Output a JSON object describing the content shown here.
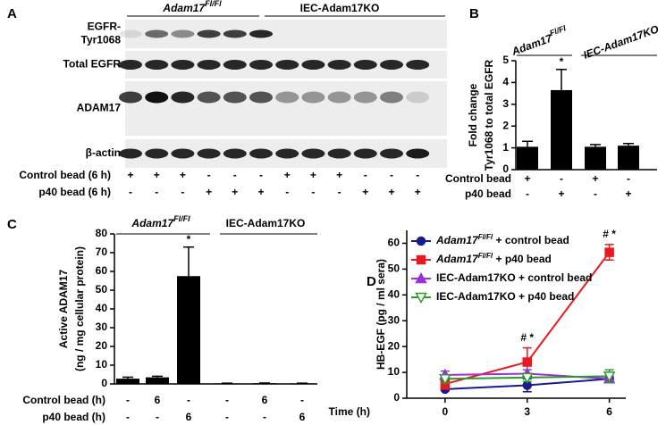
{
  "blot": {
    "panel": "A",
    "groups": [
      {
        "name": "Adam17",
        "sup": "Fl/Fl"
      },
      {
        "name": "IEC-Adam17KO"
      }
    ],
    "rows": [
      [
        "EGFR-",
        "Tyr1068"
      ],
      [
        "Total EGFR"
      ],
      [
        "ADAM17"
      ],
      [
        "β-actin"
      ]
    ],
    "conditions": [
      {
        "label": "Control bead (6 h)",
        "marks": [
          "+",
          "+",
          "+",
          "-",
          "-",
          "-",
          "+",
          "+",
          "+",
          "-",
          "-",
          "-"
        ]
      },
      {
        "label": "p40 bead (6 h)",
        "marks": [
          "-",
          "-",
          "-",
          "+",
          "+",
          "+",
          "-",
          "-",
          "-",
          "+",
          "+",
          "+"
        ]
      }
    ]
  },
  "chart_data": [
    {
      "type": "bar",
      "panel": "B",
      "group_italic": true,
      "groups": [
        {
          "name": "Adam17",
          "sup": "Fl/Fl"
        },
        {
          "name": "IEC-Adam17KO"
        }
      ],
      "ylabel": [
        "Fold change",
        "Tyr1068 to total EGFR"
      ],
      "values": [
        1.05,
        3.65,
        1.05,
        1.1
      ],
      "errors": [
        0.25,
        0.95,
        0.1,
        0.1
      ],
      "color": "#000000",
      "ylim": [
        0,
        5
      ],
      "yticks": [
        0,
        1,
        2,
        3,
        4,
        5
      ],
      "annotations": [
        {
          "text": "*",
          "index": 1
        }
      ],
      "conditions": [
        {
          "label": "Control bead",
          "marks": [
            "+",
            "-",
            "+",
            "-"
          ]
        },
        {
          "label": "p40 bead",
          "marks": [
            "-",
            "+",
            "-",
            "+"
          ]
        }
      ]
    },
    {
      "type": "bar",
      "panel": "C",
      "group_italic": false,
      "groups": [
        {
          "name": "Adam17",
          "sup": "Fl/Fl"
        },
        {
          "name": "IEC-Adam17KO"
        }
      ],
      "ylabel": [
        "Active ADAM17",
        "(ng / mg cellular protein)"
      ],
      "values": [
        2.8,
        3.5,
        57.5,
        0.3,
        0.4,
        0.3
      ],
      "errors": [
        0.8,
        0.6,
        15.5,
        0.1,
        0.1,
        0.1
      ],
      "color": "#000000",
      "ylim": [
        0,
        80
      ],
      "yticks": [
        0,
        10,
        20,
        30,
        40,
        50,
        60,
        70,
        80
      ],
      "annotations": [
        {
          "text": "*",
          "index": 2
        }
      ],
      "conditions": [
        {
          "label": "Control bead (h)",
          "marks": [
            "-",
            "6",
            "-",
            "-",
            "6",
            "-"
          ]
        },
        {
          "label": "p40 bead (h)",
          "marks": [
            "-",
            "-",
            "6",
            "-",
            "-",
            "6"
          ]
        }
      ]
    },
    {
      "type": "line",
      "panel": "D",
      "xlabel": "Time (h)",
      "ylabel": "HB-EGF (pg / ml sera)",
      "x": [
        0,
        3,
        6
      ],
      "xlim": [
        -1.4,
        6.6
      ],
      "xticks": [
        0,
        3,
        6
      ],
      "ylim": [
        0,
        65
      ],
      "yticks": [
        0,
        10,
        20,
        30,
        40,
        50,
        60
      ],
      "series": [
        {
          "name": [
            "Adam17",
            "Fl/Fl",
            " + control bead"
          ],
          "color": "#1a1a8c",
          "marker": "circle",
          "filled": true,
          "values": [
            3.5,
            5,
            7.5
          ],
          "errors": [
            0.5,
            2.5,
            1
          ]
        },
        {
          "name": [
            "Adam17",
            "Fl/Fl",
            " + p40 bead"
          ],
          "color": "#e8191f",
          "marker": "square",
          "filled": true,
          "values": [
            5.5,
            14,
            56.5
          ],
          "errors": [
            2,
            5.5,
            3
          ]
        },
        {
          "name": "IEC-Adam17KO + control bead",
          "color": "#9b30d9",
          "marker": "triangle",
          "filled": true,
          "values": [
            9,
            9.5,
            7.5
          ],
          "errors": [
            1.5,
            1.5,
            1
          ]
        },
        {
          "name": "IEC-Adam17KO + p40 bead",
          "color": "#2e9a2e",
          "marker": "triangle-down",
          "filled": false,
          "values": [
            7.5,
            8,
            8.5
          ],
          "errors": [
            1.5,
            1.5,
            2.5
          ]
        }
      ],
      "annotations": [
        {
          "text": "# *",
          "index": 1
        },
        {
          "text": "# *",
          "index": 2
        }
      ]
    }
  ]
}
